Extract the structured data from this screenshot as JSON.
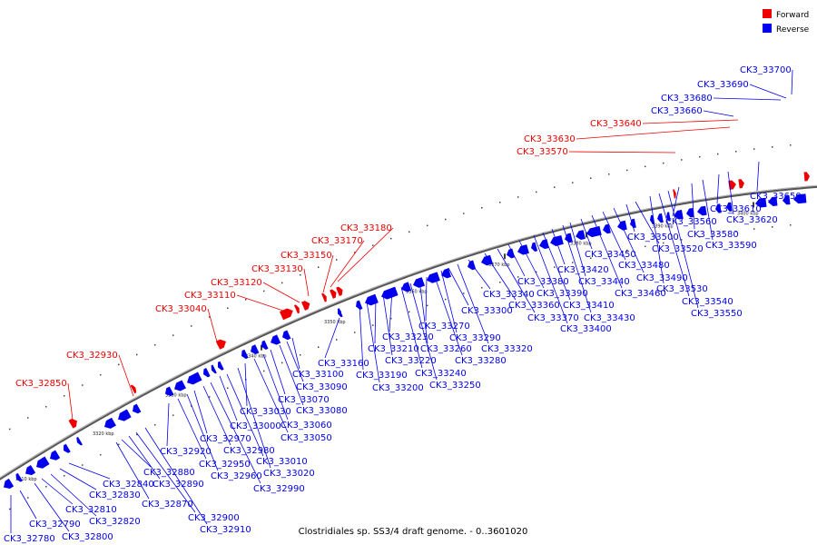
{
  "caption": "Clostridiales sp. SS3/4 draft genome. - 0..3601020",
  "legend": {
    "forward": {
      "label": "Forward",
      "color": "#ee0000"
    },
    "reverse": {
      "label": "Reverse",
      "color": "#0000ee"
    }
  },
  "ticks": [
    "3310 kbp",
    "3320 kbp",
    "3330 kbp",
    "3340 kbp",
    "3350 kbp",
    "3360 kbp",
    "3370 kbp",
    "3380 kbp",
    "3390 kbp",
    "3400 kbp"
  ],
  "forward_labels": [
    "CK3_32850",
    "CK3_32930",
    "CK3_33040",
    "CK3_33110",
    "CK3_33120",
    "CK3_33130",
    "CK3_33150",
    "CK3_33170",
    "CK3_33180",
    "CK3_33570",
    "CK3_33630",
    "CK3_33640"
  ],
  "reverse_labels": [
    "CK3_32780",
    "CK3_32790",
    "CK3_32800",
    "CK3_32810",
    "CK3_32820",
    "CK3_32830",
    "CK3_32840",
    "CK3_32870",
    "CK3_32880",
    "CK3_32890",
    "CK3_32900",
    "CK3_32910",
    "CK3_32920",
    "CK3_32950",
    "CK3_32960",
    "CK3_32970",
    "CK3_32980",
    "CK3_32990",
    "CK3_33000",
    "CK3_33010",
    "CK3_33020",
    "CK3_33030",
    "CK3_33050",
    "CK3_33060",
    "CK3_33070",
    "CK3_33080",
    "CK3_33090",
    "CK3_33100",
    "CK3_33160",
    "CK3_33190",
    "CK3_33200",
    "CK3_33210",
    "CK3_33220",
    "CK3_33230",
    "CK3_33240",
    "CK3_33250",
    "CK3_33260",
    "CK3_33270",
    "CK3_33280",
    "CK3_33290",
    "CK3_33300",
    "CK3_33320",
    "CK3_33340",
    "CK3_33360",
    "CK3_33370",
    "CK3_33380",
    "CK3_33390",
    "CK3_33400",
    "CK3_33410",
    "CK3_33420",
    "CK3_33430",
    "CK3_33440",
    "CK3_33450",
    "CK3_33460",
    "CK3_33480",
    "CK3_33490",
    "CK3_33500",
    "CK3_33520",
    "CK3_33530",
    "CK3_33540",
    "CK3_33550",
    "CK3_33560",
    "CK3_33580",
    "CK3_33590",
    "CK3_33610",
    "CK3_33620",
    "CK3_33650"
  ],
  "top_reverse_labels": [
    "CK3_33660",
    "CK3_33680",
    "CK3_33690",
    "CK3_33700"
  ]
}
